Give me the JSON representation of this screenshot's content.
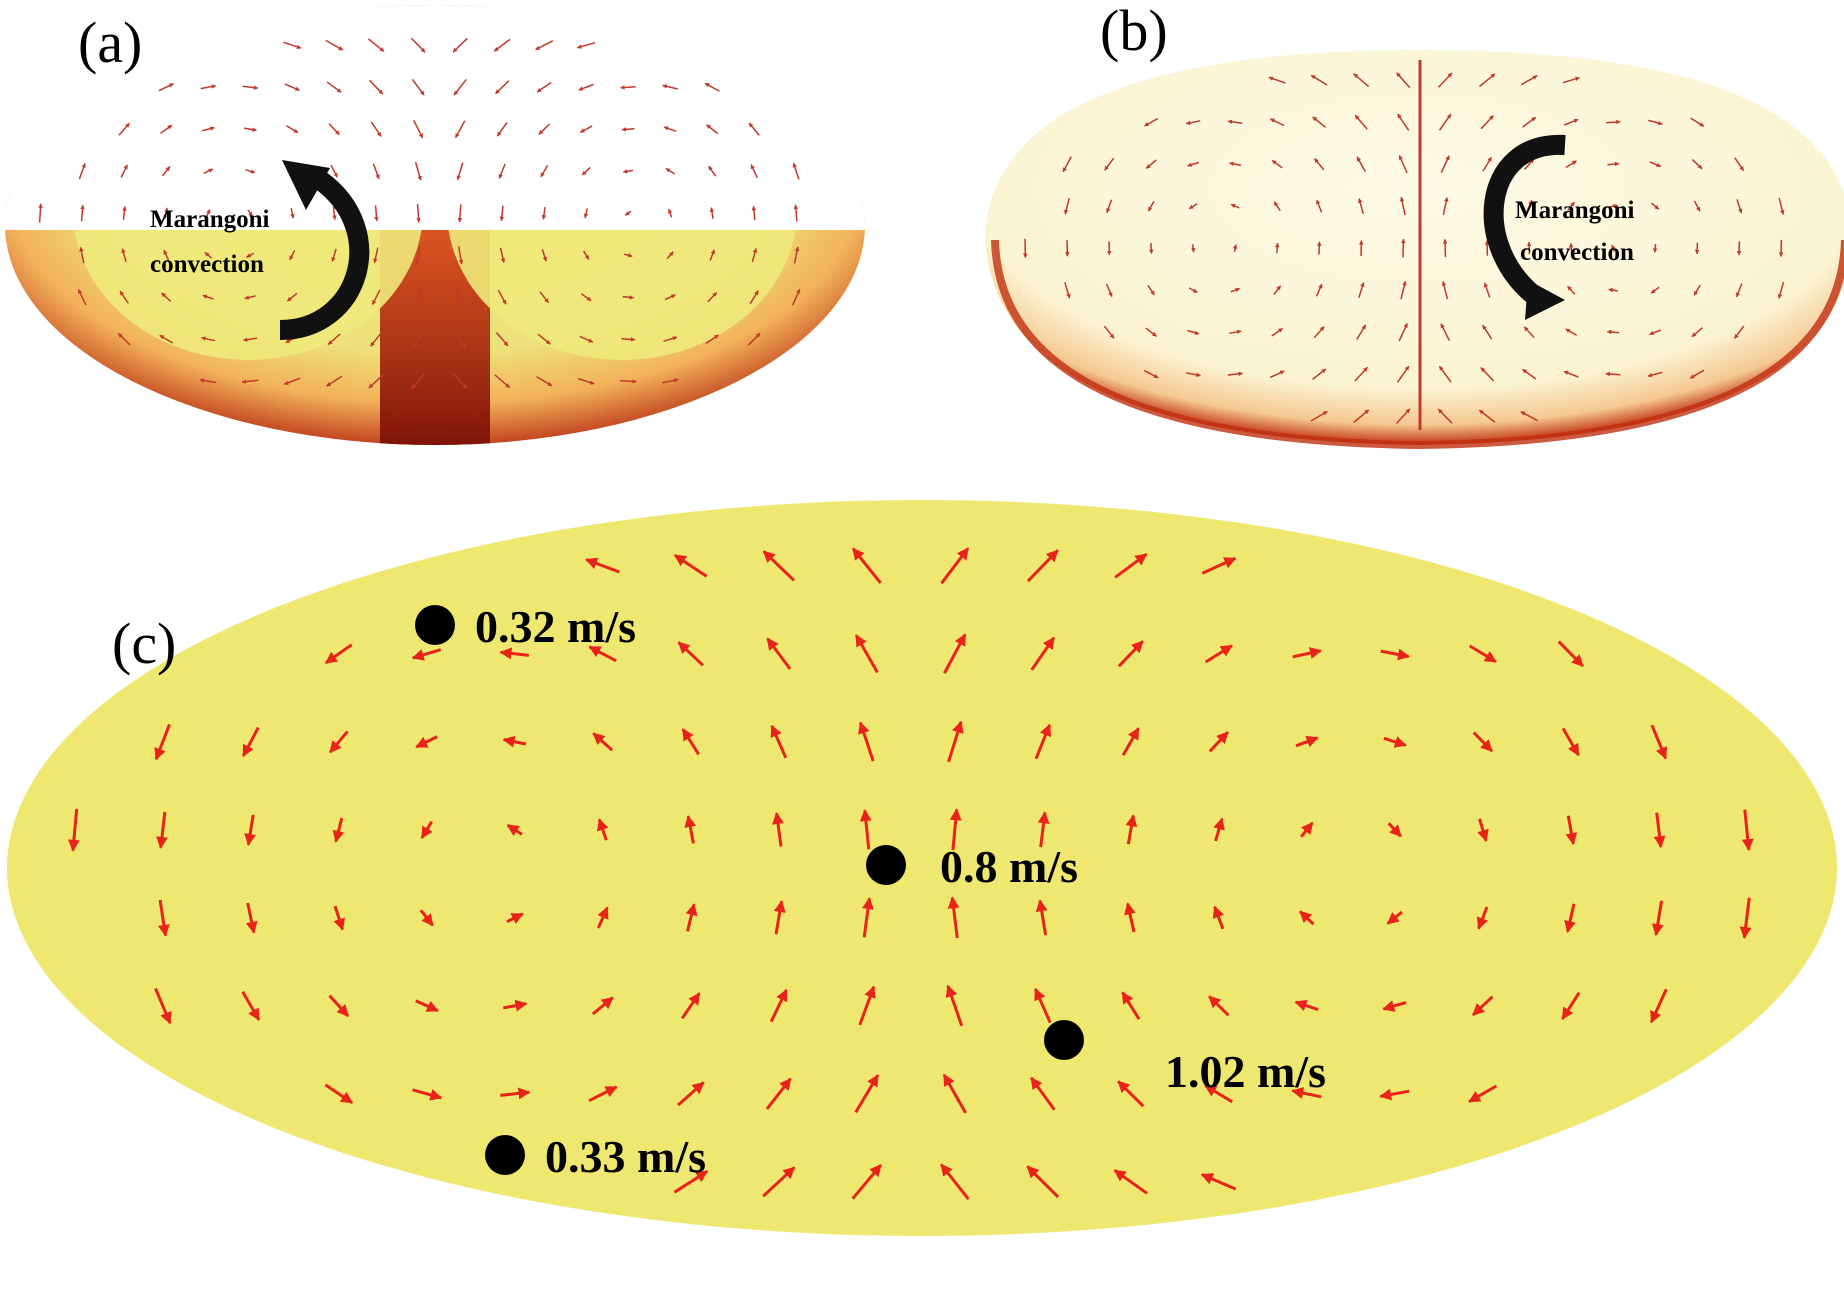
{
  "panels": {
    "a": {
      "label": "(a)",
      "annotation_line1": "Marangoni",
      "annotation_line2": "convection",
      "arrow_direction": "counterclockwise",
      "colors": {
        "core": "#eee97a",
        "mid": "#f2b25a",
        "rim": "#b3200d"
      }
    },
    "b": {
      "label": "(b)",
      "annotation_line1": "Marangoni",
      "annotation_line2": "convection",
      "arrow_direction": "clockwise",
      "colors": {
        "core": "#fbf7e0",
        "rim": "#c03010"
      }
    },
    "c": {
      "label": "(c)",
      "fill_color": "#efe870",
      "vector_color": "#e8231a",
      "markers": [
        {
          "id": "top-left",
          "speed": "0.32 m/s"
        },
        {
          "id": "center",
          "speed": "0.8 m/s"
        },
        {
          "id": "lower-right",
          "speed": "1.02 m/s"
        },
        {
          "id": "bottom-left",
          "speed": "0.33 m/s"
        }
      ]
    }
  },
  "colors": {
    "marker": "#000000",
    "vectors_small": "#c0392b"
  }
}
